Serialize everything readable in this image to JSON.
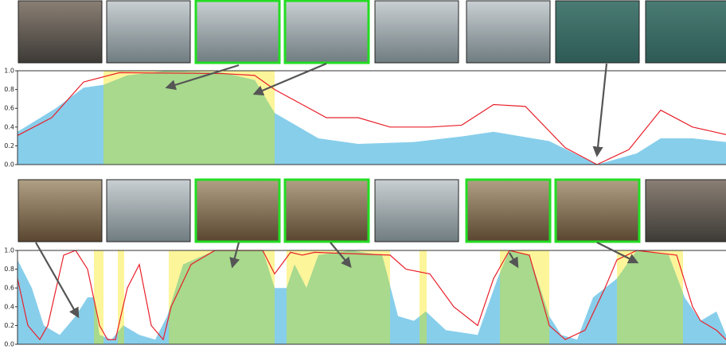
{
  "chart_data": [
    {
      "type": "area",
      "xlim": [
        0,
        890
      ],
      "ylim": [
        0,
        1
      ],
      "yticks": [
        {
          "value": 0,
          "label": "0.0"
        },
        0.2,
        0.4,
        0.6,
        0.8,
        {
          "value": 1,
          "label": "1.0"
        }
      ],
      "highlight_color": "#fdf59a",
      "highlight_fill": "#a8d98c",
      "highlights": [
        {
          "start": 108,
          "end": 323
        }
      ],
      "series": [
        {
          "style": "area",
          "color": "#87ceeb",
          "x": [
            0,
            48,
            83,
            108,
            138,
            188,
            258,
            298,
            323,
            378,
            428,
            498,
            558,
            598,
            668,
            728,
            778,
            808,
            848,
            890
          ],
          "values": [
            0.35,
            0.6,
            0.82,
            0.85,
            0.95,
            1.0,
            0.98,
            0.9,
            0.55,
            0.28,
            0.22,
            0.24,
            0.3,
            0.35,
            0.25,
            0.0,
            0.12,
            0.28,
            0.28,
            0.24
          ]
        },
        {
          "style": "line",
          "color": "#e8202a",
          "x": [
            0,
            43,
            83,
            128,
            258,
            298,
            323,
            388,
            428,
            468,
            518,
            558,
            598,
            638,
            688,
            728,
            768,
            808,
            848,
            890
          ],
          "values": [
            0.31,
            0.5,
            0.88,
            0.98,
            0.97,
            0.95,
            0.8,
            0.5,
            0.5,
            0.4,
            0.4,
            0.42,
            0.64,
            0.62,
            0.18,
            0.0,
            0.16,
            0.58,
            0.4,
            0.32
          ]
        }
      ]
    },
    {
      "type": "area",
      "xlim": [
        0,
        890
      ],
      "ylim": [
        0,
        1
      ],
      "yticks": [
        {
          "value": 0,
          "label": "0.0"
        },
        0.2,
        0.4,
        0.6,
        0.8,
        {
          "value": 1,
          "label": "1.0"
        }
      ],
      "highlight_color": "#fdf59a",
      "highlight_fill": "#a8d98c",
      "highlights": [
        {
          "start": 96,
          "end": 108
        },
        {
          "start": 126,
          "end": 134
        },
        {
          "start": 190,
          "end": 323
        },
        {
          "start": 338,
          "end": 468
        },
        {
          "start": 505,
          "end": 514
        },
        {
          "start": 606,
          "end": 668
        },
        {
          "start": 753,
          "end": 836
        }
      ],
      "series": [
        {
          "style": "area",
          "color": "#87ceeb",
          "x": [
            0,
            18,
            33,
            53,
            73,
            88,
            96,
            103,
            118,
            133,
            153,
            173,
            188,
            208,
            248,
            308,
            323,
            338,
            348,
            363,
            378,
            418,
            458,
            478,
            498,
            513,
            538,
            578,
            603,
            618,
            643,
            668,
            683,
            703,
            723,
            753,
            778,
            818,
            838,
            858,
            878,
            890
          ],
          "values": [
            0.9,
            0.6,
            0.2,
            0.1,
            0.3,
            0.5,
            0.5,
            0.1,
            0.05,
            0.2,
            0.1,
            0.05,
            0.3,
            0.85,
            1.0,
            1.0,
            0.6,
            0.6,
            0.85,
            0.6,
            0.95,
            1.0,
            0.95,
            0.3,
            0.25,
            0.35,
            0.15,
            0.1,
            0.7,
            1.0,
            0.95,
            0.3,
            0.1,
            0.05,
            0.5,
            0.7,
            1.0,
            0.95,
            0.5,
            0.25,
            0.35,
            0.1
          ]
        },
        {
          "style": "line",
          "color": "#e8202a",
          "x": [
            0,
            13,
            28,
            38,
            58,
            73,
            88,
            103,
            113,
            123,
            138,
            153,
            168,
            183,
            193,
            218,
            248,
            308,
            323,
            343,
            358,
            373,
            468,
            488,
            518,
            548,
            578,
            598,
            618,
            643,
            668,
            688,
            713,
            738,
            753,
            778,
            828,
            848,
            858,
            868,
            878,
            890
          ],
          "values": [
            0.7,
            0.2,
            0.05,
            0.2,
            0.95,
            1.0,
            0.8,
            0.2,
            0.05,
            0.05,
            0.6,
            0.85,
            0.2,
            0.05,
            0.4,
            0.85,
            1.0,
            1.0,
            0.75,
            0.98,
            0.95,
            0.98,
            0.95,
            0.8,
            0.75,
            0.4,
            0.2,
            0.7,
            1.0,
            0.95,
            0.2,
            0.05,
            0.15,
            0.6,
            0.9,
            1.0,
            0.95,
            0.4,
            0.25,
            0.2,
            0.15,
            0.05
          ]
        }
      ]
    }
  ]
}
